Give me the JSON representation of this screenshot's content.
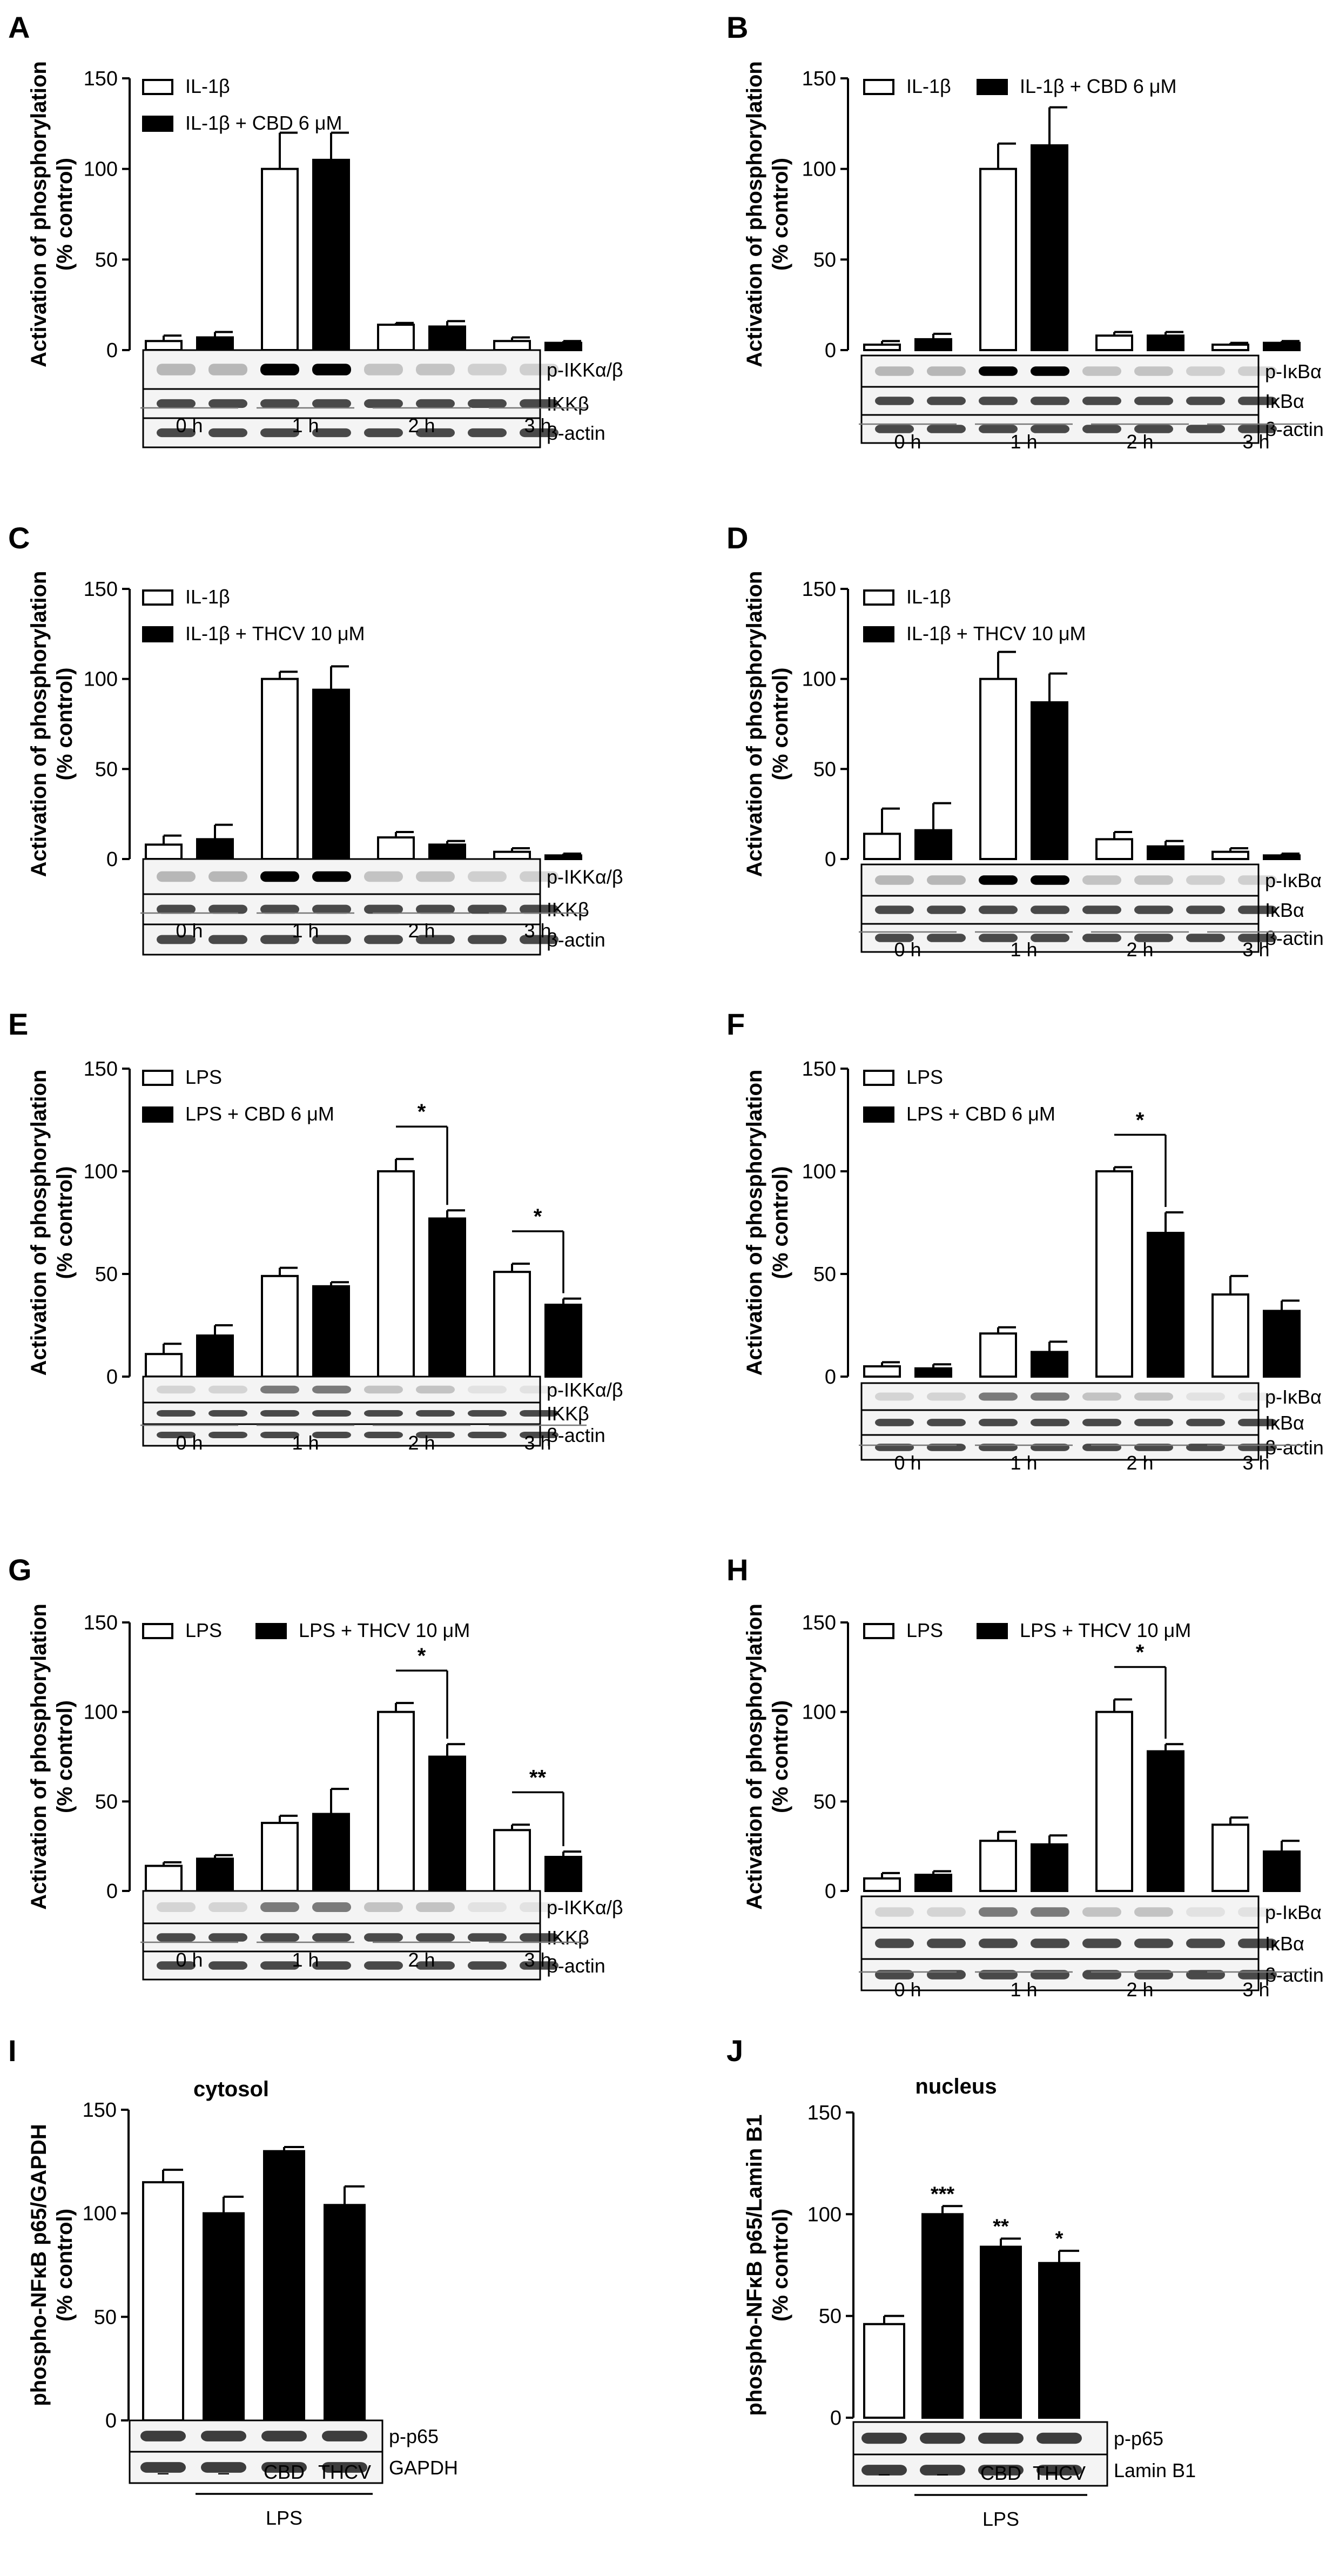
{
  "figure_title": "",
  "chart_data": [
    {
      "panel": "A",
      "type": "bar",
      "ylabel": [
        "Activation of phosphorylation",
        "(% control)"
      ],
      "ylim": [
        0,
        150
      ],
      "yticks": [
        0,
        50,
        100,
        150
      ],
      "categories": [
        "0 h",
        "1 h",
        "2 h",
        "3 h"
      ],
      "legend_position": "top-left",
      "series": [
        {
          "name": "IL-1β",
          "color": "#ffffff",
          "values": [
            5,
            100,
            14,
            5
          ],
          "errors": [
            3,
            20,
            1,
            2
          ]
        },
        {
          "name": "IL-1β + CBD 6 μM",
          "color": "#000000",
          "values": [
            7,
            105,
            13,
            4
          ],
          "errors": [
            3,
            15,
            3,
            1
          ]
        }
      ],
      "significance": [],
      "blot_labels": [
        "p-IKKα/β",
        "IKKβ",
        "β-actin"
      ]
    },
    {
      "panel": "B",
      "type": "bar",
      "ylabel": [
        "Activation of phosphorylation",
        "(% control)"
      ],
      "ylim": [
        0,
        150
      ],
      "yticks": [
        0,
        50,
        100,
        150
      ],
      "categories": [
        "0 h",
        "1 h",
        "2 h",
        "3 h"
      ],
      "legend_position": "top",
      "series": [
        {
          "name": "IL-1β",
          "color": "#ffffff",
          "values": [
            3,
            100,
            8,
            3
          ],
          "errors": [
            2,
            14,
            2,
            1
          ]
        },
        {
          "name": "IL-1β + CBD 6 μM",
          "color": "#000000",
          "values": [
            6,
            113,
            8,
            4
          ],
          "errors": [
            3,
            21,
            2,
            1
          ]
        }
      ],
      "significance": [],
      "blot_labels": [
        "p-IκBα",
        "IκBα",
        "β-actin"
      ]
    },
    {
      "panel": "C",
      "type": "bar",
      "ylabel": [
        "Activation of phosphorylation",
        "(% control)"
      ],
      "ylim": [
        0,
        150
      ],
      "yticks": [
        0,
        50,
        100,
        150
      ],
      "categories": [
        "0 h",
        "1 h",
        "2 h",
        "3 h"
      ],
      "legend_position": "top-left",
      "series": [
        {
          "name": "IL-1β",
          "color": "#ffffff",
          "values": [
            8,
            100,
            12,
            4
          ],
          "errors": [
            5,
            4,
            3,
            2
          ]
        },
        {
          "name": "IL-1β + THCV 10 μM",
          "color": "#000000",
          "values": [
            11,
            94,
            8,
            2
          ],
          "errors": [
            8,
            13,
            2,
            1
          ]
        }
      ],
      "significance": [],
      "blot_labels": [
        "p-IKKα/β",
        "IKKβ",
        "β-actin"
      ]
    },
    {
      "panel": "D",
      "type": "bar",
      "ylabel": [
        "Activation of phosphorylation",
        "(% control)"
      ],
      "ylim": [
        0,
        150
      ],
      "yticks": [
        0,
        50,
        100,
        150
      ],
      "categories": [
        "0 h",
        "1 h",
        "2 h",
        "3 h"
      ],
      "legend_position": "top-left",
      "series": [
        {
          "name": "IL-1β",
          "color": "#ffffff",
          "values": [
            14,
            100,
            11,
            4
          ],
          "errors": [
            14,
            15,
            4,
            2
          ]
        },
        {
          "name": "IL-1β + THCV 10 μM",
          "color": "#000000",
          "values": [
            16,
            87,
            7,
            2
          ],
          "errors": [
            15,
            16,
            3,
            1
          ]
        }
      ],
      "significance": [],
      "blot_labels": [
        "p-IκBα",
        "IκBα",
        "β-actin"
      ]
    },
    {
      "panel": "E",
      "type": "bar",
      "ylabel": [
        "Activation of phosphorylation",
        "(% control)"
      ],
      "ylim": [
        0,
        150
      ],
      "yticks": [
        0,
        50,
        100,
        150
      ],
      "categories": [
        "0 h",
        "1 h",
        "2 h",
        "3 h"
      ],
      "legend_position": "top-left",
      "series": [
        {
          "name": "LPS",
          "color": "#ffffff",
          "values": [
            11,
            49,
            100,
            51
          ],
          "errors": [
            5,
            4,
            6,
            4
          ]
        },
        {
          "name": "LPS + CBD 6 μM",
          "color": "#000000",
          "values": [
            20,
            44,
            77,
            35
          ],
          "errors": [
            5,
            2,
            4,
            3
          ]
        }
      ],
      "significance": [
        {
          "category": 2,
          "label": "*"
        },
        {
          "category": 3,
          "label": "*"
        }
      ],
      "blot_labels": [
        "p-IKKα/β",
        "IKKβ",
        "β-actin"
      ]
    },
    {
      "panel": "F",
      "type": "bar",
      "ylabel": [
        "Activation of phosphorylation",
        "(% control)"
      ],
      "ylim": [
        0,
        150
      ],
      "yticks": [
        0,
        50,
        100,
        150
      ],
      "categories": [
        "0 h",
        "1 h",
        "2 h",
        "3 h"
      ],
      "legend_position": "top-left",
      "series": [
        {
          "name": "LPS",
          "color": "#ffffff",
          "values": [
            5,
            21,
            100,
            40
          ],
          "errors": [
            2,
            3,
            2,
            9
          ]
        },
        {
          "name": "LPS + CBD 6 μM",
          "color": "#000000",
          "values": [
            4,
            12,
            70,
            32
          ],
          "errors": [
            2,
            5,
            10,
            5
          ]
        }
      ],
      "significance": [
        {
          "category": 2,
          "label": "*"
        }
      ],
      "blot_labels": [
        "p-IκBα",
        "IκBα",
        "β-actin"
      ]
    },
    {
      "panel": "G",
      "type": "bar",
      "ylabel": [
        "Activation of phosphorylation",
        "(% control)"
      ],
      "ylim": [
        0,
        150
      ],
      "yticks": [
        0,
        50,
        100,
        150
      ],
      "categories": [
        "0 h",
        "1 h",
        "2 h",
        "3 h"
      ],
      "legend_position": "top",
      "series": [
        {
          "name": "LPS",
          "color": "#ffffff",
          "values": [
            14,
            38,
            100,
            34
          ],
          "errors": [
            2,
            4,
            5,
            3
          ]
        },
        {
          "name": "LPS + THCV 10 μM",
          "color": "#000000",
          "values": [
            18,
            43,
            75,
            19
          ],
          "errors": [
            2,
            14,
            7,
            3
          ]
        }
      ],
      "significance": [
        {
          "category": 2,
          "label": "*"
        },
        {
          "category": 3,
          "label": "**"
        }
      ],
      "blot_labels": [
        "p-IKKα/β",
        "IKKβ",
        "β-actin"
      ]
    },
    {
      "panel": "H",
      "type": "bar",
      "ylabel": [
        "Activation of phosphorylation",
        "(% control)"
      ],
      "ylim": [
        0,
        150
      ],
      "yticks": [
        0,
        50,
        100,
        150
      ],
      "categories": [
        "0 h",
        "1 h",
        "2 h",
        "3 h"
      ],
      "legend_position": "top",
      "series": [
        {
          "name": "LPS",
          "color": "#ffffff",
          "values": [
            7,
            28,
            100,
            37
          ],
          "errors": [
            3,
            5,
            7,
            4
          ]
        },
        {
          "name": "LPS + THCV 10 μM",
          "color": "#000000",
          "values": [
            9,
            26,
            78,
            22
          ],
          "errors": [
            2,
            5,
            4,
            6
          ]
        }
      ],
      "significance": [
        {
          "category": 2,
          "label": "*"
        }
      ],
      "blot_labels": [
        "p-IκBα",
        "IκBα",
        "β-actin"
      ]
    },
    {
      "panel": "I",
      "type": "bar",
      "title": "cytosol",
      "ylabel": [
        "phospho-NFκB p65/GAPDH",
        "(% control)"
      ],
      "ylim": [
        0,
        150
      ],
      "yticks": [
        0,
        50,
        100,
        150
      ],
      "categories": [
        "–",
        "–",
        "CBD",
        "THCV"
      ],
      "group_label": "LPS",
      "group_label_span": [
        1,
        3
      ],
      "values": [
        115,
        100,
        130,
        104
      ],
      "errors": [
        6,
        8,
        2,
        9
      ],
      "colors": [
        "#ffffff",
        "#000000",
        "#000000",
        "#000000"
      ],
      "significance_labels": [
        "",
        "",
        "",
        ""
      ],
      "blot_labels": [
        "p-p65",
        "GAPDH"
      ]
    },
    {
      "panel": "J",
      "type": "bar",
      "title": "nucleus",
      "ylabel": [
        "phospho-NFκB p65/Lamin B1",
        "(% control)"
      ],
      "ylim": [
        0,
        150
      ],
      "yticks": [
        0,
        50,
        100,
        150
      ],
      "categories": [
        "–",
        "–",
        "CBD",
        "THCV"
      ],
      "group_label": "LPS",
      "group_label_span": [
        1,
        3
      ],
      "values": [
        46,
        100,
        84,
        76
      ],
      "errors": [
        4,
        4,
        4,
        6
      ],
      "colors": [
        "#ffffff",
        "#000000",
        "#000000",
        "#000000"
      ],
      "significance_labels": [
        "",
        "***",
        "**",
        "*"
      ],
      "blot_labels": [
        "p-p65",
        "Lamin B1"
      ]
    }
  ]
}
